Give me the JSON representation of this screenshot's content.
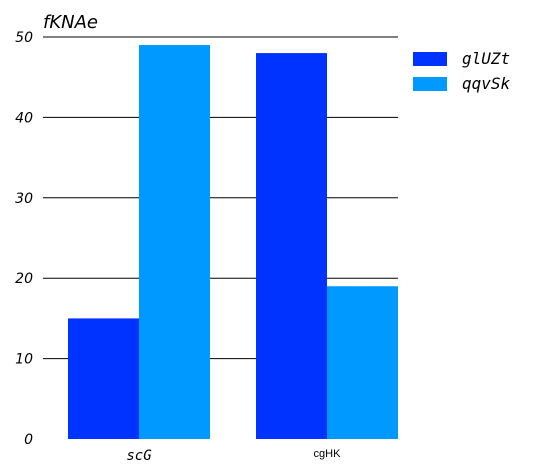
{
  "chart_data": {
    "type": "bar",
    "title": "",
    "xlabel": "",
    "ylabel": "fKNAe",
    "ylim": [
      0,
      50
    ],
    "yticks": [
      0,
      10,
      20,
      30,
      40,
      50
    ],
    "grid": true,
    "legend_position": "top-right",
    "categories": [
      "scG",
      "cgHK"
    ],
    "series": [
      {
        "name": "glUZt",
        "color": "#0033ff",
        "values": [
          15,
          48
        ]
      },
      {
        "name": "qqvSk",
        "color": "#0099ff",
        "values": [
          49,
          19
        ]
      }
    ]
  }
}
